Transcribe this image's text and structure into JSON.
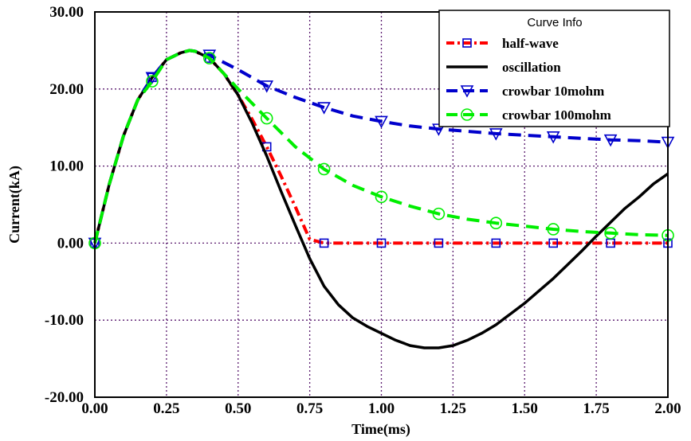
{
  "chart_data": {
    "type": "line",
    "title": "",
    "xlabel": "Time(ms)",
    "ylabel": "Current(kA)",
    "xlim": [
      0,
      2
    ],
    "ylim": [
      -20,
      30
    ],
    "x_ticks": [
      0,
      0.25,
      0.5,
      0.75,
      1.0,
      1.25,
      1.5,
      1.75,
      2.0
    ],
    "y_ticks": [
      -20,
      -10,
      0,
      10,
      20,
      30
    ],
    "x_tick_labels": [
      "0.00",
      "0.25",
      "0.50",
      "0.75",
      "1.00",
      "1.25",
      "1.50",
      "1.75",
      "2.00"
    ],
    "y_tick_labels": [
      "-20.00",
      "-10.00",
      "0.00",
      "10.00",
      "20.00",
      "30.00"
    ],
    "grid": true,
    "legend_title": "Curve Info",
    "legend_position": "top-right",
    "series": [
      {
        "name": "half-wave",
        "color": "#ff0000",
        "marker_color": "#0000cc",
        "line_style": "dash-dot",
        "marker": "square",
        "x": [
          0,
          0.05,
          0.1,
          0.15,
          0.2,
          0.25,
          0.3,
          0.33,
          0.35,
          0.4,
          0.45,
          0.5,
          0.55,
          0.6,
          0.65,
          0.7,
          0.75,
          0.8,
          1.0,
          1.2,
          1.4,
          1.6,
          1.8,
          2.0
        ],
        "y": [
          0,
          7.6,
          13.9,
          18.6,
          21.5,
          23.8,
          24.7,
          25.0,
          24.9,
          24.0,
          22.0,
          19.2,
          16.0,
          12.5,
          8.7,
          4.7,
          0.5,
          0,
          0,
          0,
          0,
          0,
          0,
          0
        ],
        "marker_x": [
          0,
          0.2,
          0.4,
          0.6,
          0.8,
          1.0,
          1.2,
          1.4,
          1.6,
          1.8,
          2.0
        ]
      },
      {
        "name": "oscillation",
        "color": "#000000",
        "line_style": "solid",
        "marker": "none",
        "x": [
          0,
          0.05,
          0.1,
          0.15,
          0.2,
          0.25,
          0.3,
          0.33,
          0.35,
          0.4,
          0.45,
          0.5,
          0.55,
          0.6,
          0.65,
          0.7,
          0.75,
          0.8,
          0.85,
          0.9,
          0.95,
          1.0,
          1.05,
          1.1,
          1.15,
          1.2,
          1.25,
          1.3,
          1.35,
          1.4,
          1.45,
          1.5,
          1.55,
          1.6,
          1.65,
          1.7,
          1.75,
          1.8,
          1.85,
          1.9,
          1.95,
          2.0
        ],
        "y": [
          0,
          7.6,
          13.9,
          18.6,
          21.5,
          23.8,
          24.7,
          25.0,
          24.9,
          24.0,
          22.0,
          19.2,
          15.5,
          11.3,
          6.7,
          2.3,
          -2.0,
          -5.6,
          -8.0,
          -9.7,
          -10.8,
          -11.7,
          -12.6,
          -13.3,
          -13.6,
          -13.6,
          -13.3,
          -12.6,
          -11.7,
          -10.6,
          -9.2,
          -7.8,
          -6.2,
          -4.6,
          -2.8,
          -1.0,
          0.9,
          2.7,
          4.5,
          6.0,
          7.7,
          9.0
        ]
      },
      {
        "name": "crowbar 10mohm",
        "color": "#0000cc",
        "line_style": "dash",
        "marker": "triangle-down",
        "x": [
          0,
          0.05,
          0.1,
          0.15,
          0.2,
          0.25,
          0.3,
          0.33,
          0.35,
          0.4,
          0.5,
          0.6,
          0.7,
          0.8,
          0.9,
          1.0,
          1.1,
          1.2,
          1.3,
          1.4,
          1.5,
          1.6,
          1.7,
          1.8,
          1.9,
          2.0
        ],
        "y": [
          0,
          7.6,
          13.9,
          18.6,
          21.5,
          23.8,
          24.7,
          25.0,
          24.9,
          24.4,
          22.5,
          20.4,
          18.9,
          17.6,
          16.5,
          15.8,
          15.2,
          14.8,
          14.5,
          14.2,
          14.0,
          13.8,
          13.6,
          13.4,
          13.3,
          13.1
        ],
        "marker_x": [
          0,
          0.2,
          0.4,
          0.6,
          0.8,
          1.0,
          1.2,
          1.4,
          1.6,
          1.8,
          2.0
        ]
      },
      {
        "name": "crowbar 100mohm",
        "color": "#00ee00",
        "line_style": "dash",
        "marker": "circle",
        "x": [
          0,
          0.05,
          0.1,
          0.15,
          0.2,
          0.25,
          0.3,
          0.33,
          0.35,
          0.4,
          0.5,
          0.6,
          0.7,
          0.8,
          0.9,
          1.0,
          1.1,
          1.2,
          1.3,
          1.4,
          1.5,
          1.6,
          1.7,
          1.8,
          1.9,
          2.0
        ],
        "y": [
          0,
          7.6,
          13.9,
          18.6,
          21.0,
          23.8,
          24.7,
          25.0,
          24.9,
          24.0,
          20.0,
          16.2,
          12.5,
          9.6,
          7.5,
          6.0,
          4.8,
          3.8,
          3.1,
          2.6,
          2.2,
          1.8,
          1.5,
          1.3,
          1.1,
          1.0
        ],
        "marker_x": [
          0,
          0.2,
          0.4,
          0.6,
          0.8,
          1.0,
          1.2,
          1.4,
          1.6,
          1.8,
          2.0
        ]
      }
    ]
  }
}
